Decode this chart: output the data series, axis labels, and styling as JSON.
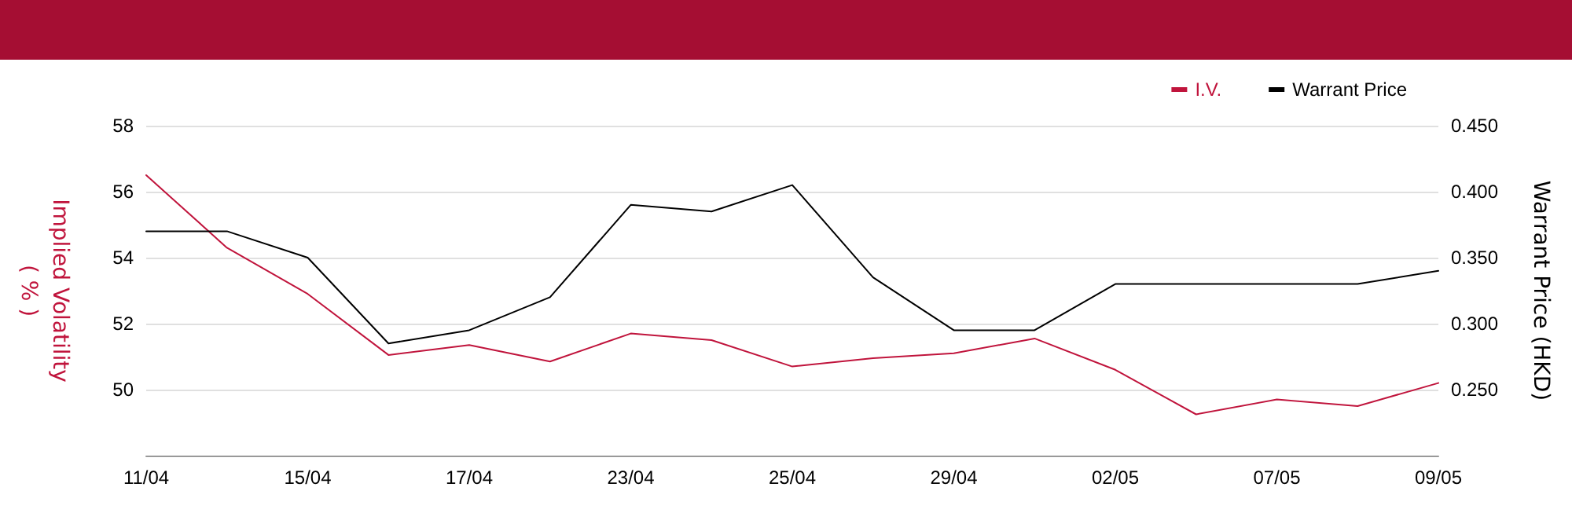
{
  "chart_data": {
    "type": "line",
    "categories": [
      "11/04",
      null,
      "15/04",
      null,
      "17/04",
      null,
      "23/04",
      null,
      "25/04",
      null,
      "29/04",
      null,
      "02/05",
      null,
      "07/05",
      null,
      "09/05"
    ],
    "series": [
      {
        "name": "I.V.",
        "color": "#c0143c",
        "values": [
          56.5,
          54.3,
          52.9,
          51.05,
          51.35,
          50.85,
          51.7,
          51.5,
          50.7,
          50.95,
          51.1,
          51.55,
          50.6,
          49.25,
          49.7,
          49.5,
          50.2
        ]
      },
      {
        "name": "Warrant Price",
        "color": "#000000",
        "axis": "y2",
        "values": [
          0.37,
          0.37,
          0.35,
          0.285,
          0.295,
          0.32,
          0.39,
          0.385,
          0.405,
          0.335,
          0.295,
          0.295,
          0.33,
          0.33,
          0.33,
          0.33,
          0.34
        ]
      }
    ],
    "ylabel": "Implied Volatility\n( % )",
    "y2label": "Warrant Price (HKD)",
    "ylim": [
      48,
      58
    ],
    "yticks": [
      50,
      52,
      54,
      56,
      58
    ],
    "y2lim": [
      0.2,
      0.45
    ],
    "y2ticks": [
      {
        "value": 0.25,
        "label": "0.250"
      },
      {
        "value": 0.3,
        "label": "0.300"
      },
      {
        "value": 0.35,
        "label": "0.350"
      },
      {
        "value": 0.4,
        "label": "0.400"
      },
      {
        "value": 0.45,
        "label": "0.450"
      }
    ],
    "grid": "y",
    "legend": "top right",
    "marker": "none",
    "line_style": "solid"
  }
}
